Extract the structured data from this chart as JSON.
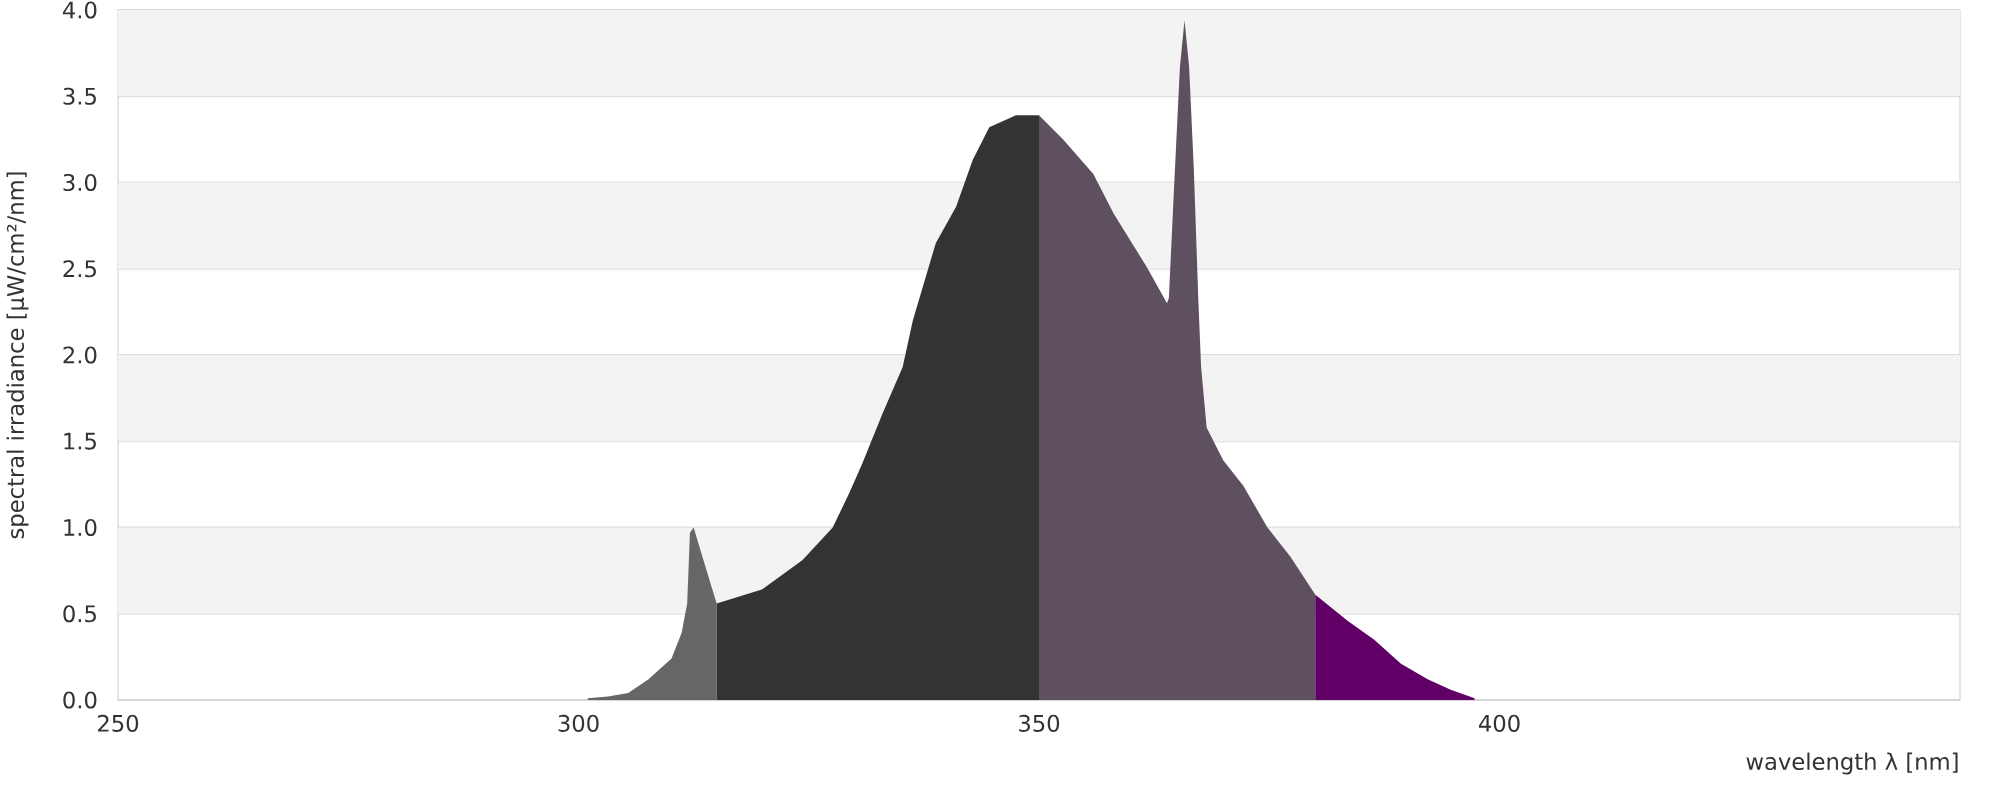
{
  "chart_data": {
    "type": "area",
    "xlabel": "wavelength λ [nm]",
    "ylabel": "spectral irradiance [µW/cm²/nm]",
    "xlim": [
      250,
      450
    ],
    "xticks": [
      250,
      300,
      350,
      400
    ],
    "ylim": [
      0,
      4
    ],
    "yticks": [
      {
        "value": 0,
        "label": "0.0"
      },
      {
        "value": 0.5,
        "label": "0.5"
      },
      {
        "value": 1,
        "label": "1.0"
      },
      {
        "value": 1.5,
        "label": "1.5"
      },
      {
        "value": 2,
        "label": "2.0"
      },
      {
        "value": 2.5,
        "label": "2.5"
      },
      {
        "value": 3,
        "label": "3.0"
      },
      {
        "value": 3.5,
        "label": "3.5"
      },
      {
        "value": 4,
        "label": "4.0"
      }
    ],
    "grid": "y",
    "series": [
      {
        "color": "#666666",
        "x": [
          301,
          303.2,
          305.4,
          307.6,
          310.1,
          311.2,
          311.8,
          312.1,
          312.5,
          313.8,
          315
        ],
        "values": [
          0.01,
          0.02,
          0.04,
          0.12,
          0.24,
          0.39,
          0.56,
          0.97,
          1.0,
          0.77,
          0.56
        ]
      },
      {
        "color": "#333333",
        "x": [
          315,
          319.9,
          324.3,
          327.6,
          329.4,
          330.8,
          333.0,
          335.2,
          336.3,
          338.8,
          341.0,
          342.8,
          344.6,
          347.5,
          350
        ],
        "values": [
          0.56,
          0.64,
          0.81,
          1.0,
          1.2,
          1.37,
          1.66,
          1.93,
          2.2,
          2.65,
          2.86,
          3.13,
          3.32,
          3.39,
          3.39
        ]
      },
      {
        "color": "#5e505e",
        "x": [
          350,
          352.6,
          355.9,
          358.1,
          361.7,
          363.9,
          364.1,
          364.6,
          365.3,
          365.8,
          366.3,
          366.8,
          367.3,
          367.6,
          368.2,
          370.0,
          372.2,
          374.8,
          377.3,
          380
        ],
        "values": [
          3.39,
          3.25,
          3.05,
          2.82,
          2.51,
          2.3,
          2.33,
          2.9,
          3.67,
          3.94,
          3.67,
          3.09,
          2.32,
          1.93,
          1.58,
          1.39,
          1.24,
          1.0,
          0.83,
          0.61
        ]
      },
      {
        "color": "#600066",
        "x": [
          380,
          383.5,
          386.4,
          389.3,
          392.2,
          394.7,
          397.3
        ],
        "values": [
          0.61,
          0.46,
          0.35,
          0.21,
          0.12,
          0.06,
          0.01
        ]
      }
    ]
  }
}
